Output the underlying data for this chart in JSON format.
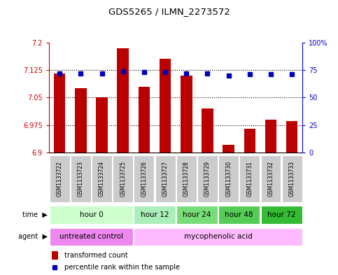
{
  "title": "GDS5265 / ILMN_2273572",
  "samples": [
    "GSM1133722",
    "GSM1133723",
    "GSM1133724",
    "GSM1133725",
    "GSM1133726",
    "GSM1133727",
    "GSM1133728",
    "GSM1133729",
    "GSM1133730",
    "GSM1133731",
    "GSM1133732",
    "GSM1133733"
  ],
  "transformed_counts": [
    7.115,
    7.075,
    7.05,
    7.185,
    7.08,
    7.155,
    7.11,
    7.02,
    6.92,
    6.965,
    6.99,
    6.985
  ],
  "percentile_ranks": [
    72,
    72,
    72,
    74,
    73,
    73,
    72,
    72,
    70,
    71,
    71,
    71
  ],
  "ylim_left": [
    6.9,
    7.2
  ],
  "ylim_right": [
    0,
    100
  ],
  "yticks_left": [
    6.9,
    6.975,
    7.05,
    7.125,
    7.2
  ],
  "yticks_right": [
    0,
    25,
    50,
    75,
    100
  ],
  "ytick_labels_left": [
    "6.9",
    "6.975",
    "7.05",
    "7.125",
    "7.2"
  ],
  "ytick_labels_right": [
    "0",
    "25",
    "50",
    "75",
    "100%"
  ],
  "bar_color": "#bb0000",
  "dot_color": "#0000bb",
  "baseline": 6.9,
  "time_groups": [
    {
      "label": "hour 0",
      "start": 0,
      "end": 3,
      "color": "#ccffcc"
    },
    {
      "label": "hour 12",
      "start": 4,
      "end": 5,
      "color": "#aaeebb"
    },
    {
      "label": "hour 24",
      "start": 6,
      "end": 7,
      "color": "#77dd77"
    },
    {
      "label": "hour 48",
      "start": 8,
      "end": 9,
      "color": "#55cc55"
    },
    {
      "label": "hour 72",
      "start": 10,
      "end": 11,
      "color": "#33bb33"
    }
  ],
  "agent_groups": [
    {
      "label": "untreated control",
      "start": 0,
      "end": 3,
      "color": "#ee88ee"
    },
    {
      "label": "mycophenolic acid",
      "start": 4,
      "end": 11,
      "color": "#ffbbff"
    }
  ],
  "legend_bar_label": "transformed count",
  "legend_dot_label": "percentile rank within the sample",
  "time_label": "time",
  "agent_label": "agent",
  "sample_bg": "#cccccc",
  "plot_bg": "#ffffff"
}
